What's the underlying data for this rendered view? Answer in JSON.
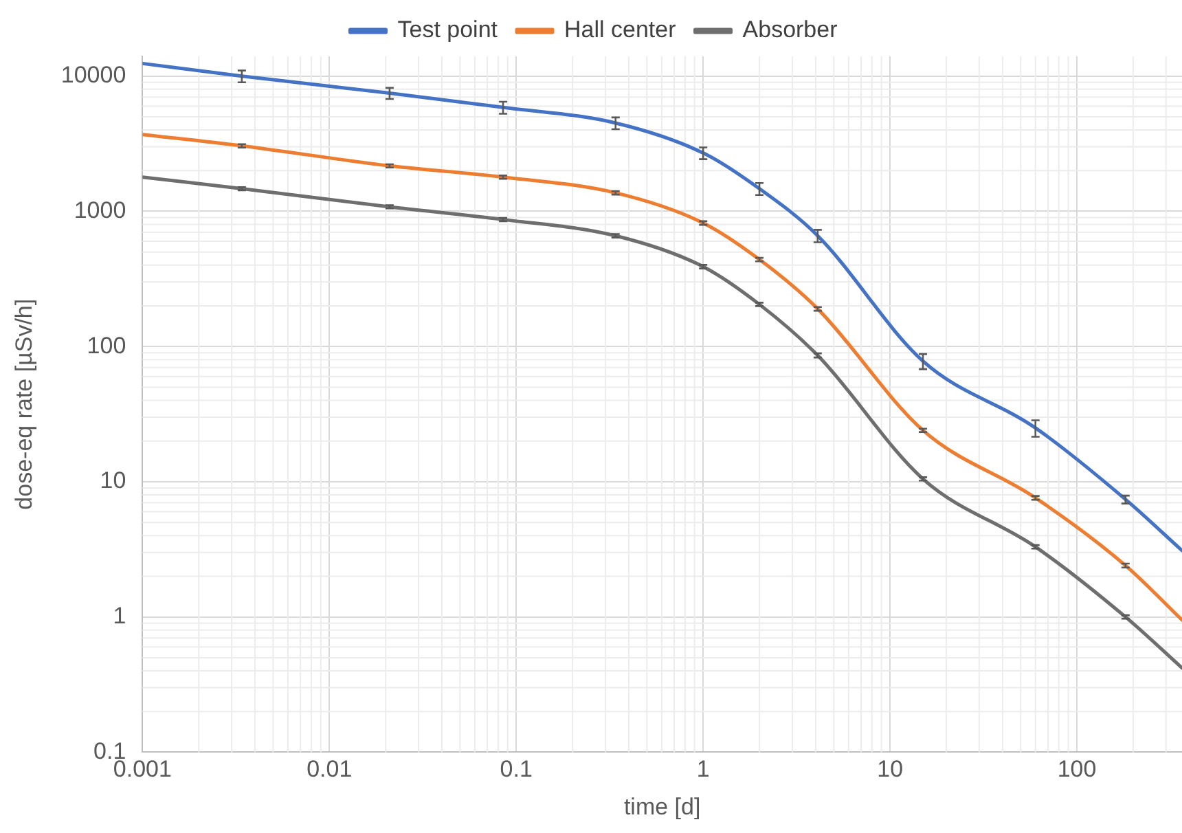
{
  "chart_data": {
    "type": "line",
    "xlabel": "time [d]",
    "ylabel": "dose-eq rate [µSv/h]",
    "log": "xy",
    "grid": true,
    "legend": "top",
    "line_style": "solid",
    "xlim": [
      0.001,
      365
    ],
    "xticks": [
      0.001,
      0.01,
      0.1,
      1,
      10,
      100
    ],
    "ylim": [
      0.1,
      14000
    ],
    "yticks": [
      0.1,
      1,
      10,
      100,
      1000,
      10000
    ],
    "series": [
      {
        "name": "Test point",
        "color": "#4472c4",
        "x": [
          0.001,
          0.0034,
          0.021,
          0.085,
          0.34,
          1,
          2,
          4.1,
          15,
          60,
          182,
          365
        ],
        "values": [
          12400,
          10000,
          7480,
          5870,
          4500,
          2700,
          1470,
          660,
          78,
          25,
          7.4,
          3.1
        ],
        "errors": [
          null,
          1000,
          700,
          600,
          450,
          270,
          150,
          70,
          10,
          3.5,
          0.5,
          null
        ]
      },
      {
        "name": "Hall center",
        "color": "#ed7d31",
        "x": [
          0.001,
          0.0034,
          0.021,
          0.085,
          0.34,
          1,
          2,
          4.1,
          15,
          60,
          182,
          365
        ],
        "values": [
          3700,
          3050,
          2170,
          1790,
          1370,
          820,
          440,
          190,
          24,
          7.6,
          2.4,
          0.95
        ],
        "errors": [
          null,
          90,
          60,
          50,
          40,
          25,
          13,
          6,
          0.7,
          0.25,
          0.08,
          null
        ]
      },
      {
        "name": "Absorber",
        "color": "#6e6e6e",
        "x": [
          0.001,
          0.0034,
          0.021,
          0.085,
          0.34,
          1,
          2,
          4.1,
          15,
          60,
          182,
          365
        ],
        "values": [
          1790,
          1470,
          1080,
          870,
          660,
          390,
          205,
          86,
          10.5,
          3.3,
          1.0,
          0.42
        ],
        "errors": [
          null,
          40,
          30,
          25,
          20,
          12,
          6,
          3,
          0.3,
          0.1,
          0.03,
          null
        ]
      }
    ]
  }
}
